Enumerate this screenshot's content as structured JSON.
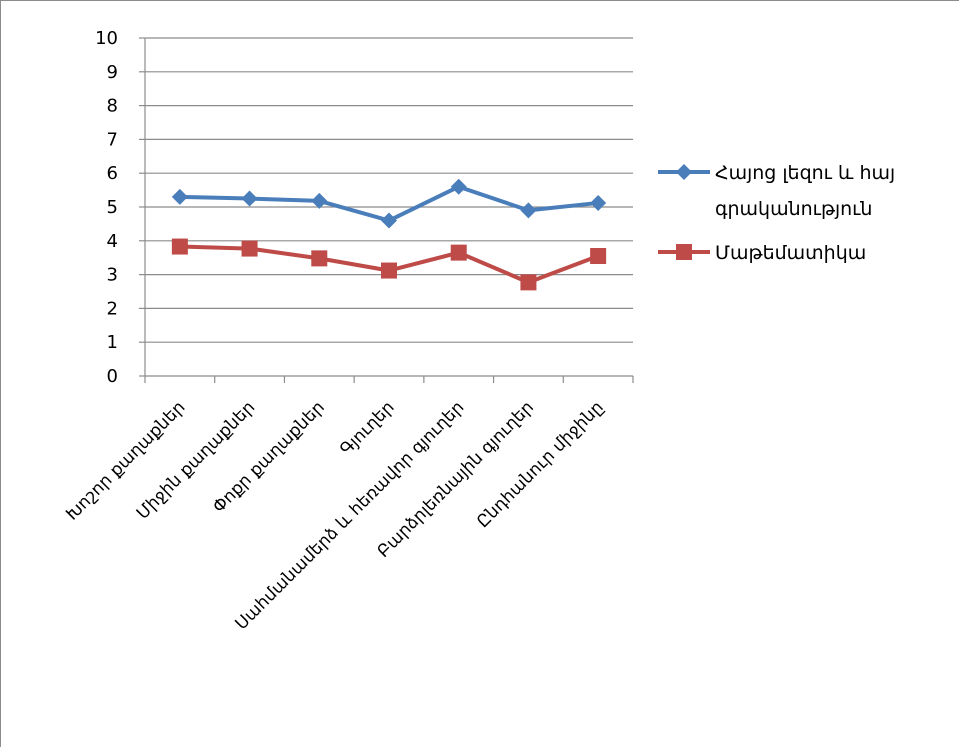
{
  "chart_data": {
    "type": "line",
    "categories": [
      "Խոշոր քաղաքներ",
      "Միջին քաղաքներ",
      "Փոքր քաղաքներ",
      "Գյուղեր",
      "Սահմանամերձ և հեռավոր գյուղեր",
      "Բարձրլեռնային գյուղեր",
      "Ընդհանուր միջինը"
    ],
    "series": [
      {
        "name": "Հայոց լեզու և հայ գրականություն",
        "name_lines": [
          "Հայոց լեզու և հայ",
          "գրականություն"
        ],
        "values": [
          5.3,
          5.25,
          5.18,
          4.6,
          5.6,
          4.9,
          5.12
        ],
        "color": "#4a7ebb",
        "marker": "diamond"
      },
      {
        "name": "Մաթեմատիկա",
        "name_lines": [
          "Մաթեմատիկա"
        ],
        "values": [
          3.83,
          3.77,
          3.48,
          3.12,
          3.65,
          2.77,
          3.55
        ],
        "color": "#be4b48",
        "marker": "square"
      }
    ],
    "y_ticks": [
      "0",
      "1",
      "2",
      "3",
      "4",
      "5",
      "6",
      "7",
      "8",
      "9",
      "10"
    ],
    "ylim": [
      0,
      10
    ],
    "grid": true,
    "legend": "right"
  }
}
